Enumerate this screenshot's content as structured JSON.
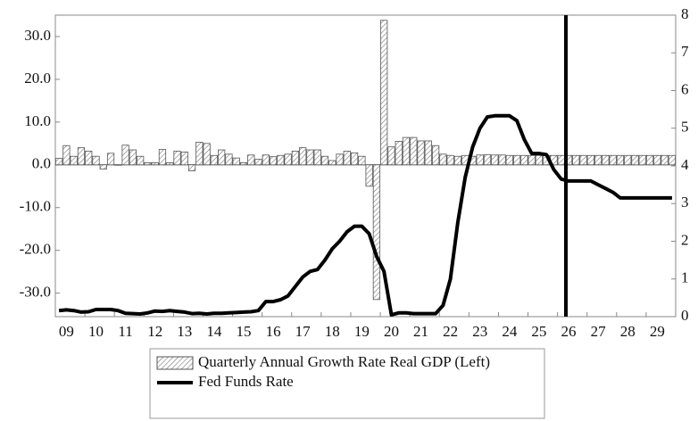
{
  "chart_data": {
    "type": "bar_line",
    "categories": [
      null,
      "09",
      null,
      null,
      null,
      "10",
      null,
      null,
      null,
      "11",
      null,
      null,
      null,
      "12",
      null,
      null,
      null,
      "13",
      null,
      null,
      null,
      "14",
      null,
      null,
      null,
      "15",
      null,
      null,
      null,
      "16",
      null,
      null,
      null,
      "17",
      null,
      null,
      null,
      "18",
      null,
      null,
      null,
      "19",
      null,
      null,
      null,
      "20",
      null,
      null,
      null,
      "21",
      null,
      null,
      null,
      "22",
      null,
      null,
      null,
      "23",
      null,
      null,
      null,
      "24",
      null,
      null,
      null,
      "25",
      null,
      null,
      null,
      "26",
      null,
      null,
      null,
      "27",
      null,
      null,
      null,
      "28",
      null,
      null,
      null,
      "29",
      null,
      null
    ],
    "series": [
      {
        "name": "Quarterly Annual Growth Rate Real GDP (Left)",
        "color": "#777777",
        "hatch": true,
        "axis": "y",
        "values": [
          1.5,
          4.5,
          2.0,
          4.0,
          3.2,
          2.0,
          -1.0,
          2.7,
          -0.1,
          4.6,
          3.5,
          2.0,
          0.5,
          0.5,
          3.6,
          0.5,
          3.2,
          3.0,
          -1.4,
          5.3,
          5.0,
          2.2,
          3.5,
          2.5,
          1.6,
          0.5,
          2.3,
          1.3,
          2.3,
          1.9,
          2.2,
          2.5,
          3.2,
          4.0,
          3.5,
          3.5,
          2.0,
          1.0,
          2.5,
          3.2,
          2.8,
          2.0,
          -5.0,
          -31.5,
          33.8,
          4.2,
          5.5,
          6.4,
          6.4,
          5.6,
          5.6,
          4.5,
          2.5,
          2.2,
          2.0,
          2.2,
          2.0,
          2.3,
          2.4,
          2.3,
          2.3,
          2.2,
          2.2,
          2.2,
          2.2,
          2.2,
          2.2,
          2.2,
          2.2,
          2.2,
          2.2,
          2.2,
          2.2,
          2.2,
          2.2,
          2.2,
          2.2,
          2.2,
          2.2,
          2.2,
          2.2,
          2.2,
          2.2,
          2.2
        ]
      },
      {
        "name": "Fed Funds Rate",
        "color": "#000000",
        "axis": "y2",
        "values": [
          0.16,
          0.18,
          0.16,
          0.12,
          0.13,
          0.19,
          0.19,
          0.19,
          0.16,
          0.09,
          0.08,
          0.07,
          0.1,
          0.15,
          0.14,
          0.16,
          0.14,
          0.12,
          0.08,
          0.09,
          0.07,
          0.09,
          0.09,
          0.1,
          0.11,
          0.12,
          0.13,
          0.16,
          0.4,
          0.4,
          0.45,
          0.55,
          0.8,
          1.05,
          1.2,
          1.25,
          1.5,
          1.8,
          2.0,
          2.25,
          2.4,
          2.4,
          2.2,
          1.6,
          1.2,
          0.05,
          0.1,
          0.1,
          0.08,
          0.08,
          0.08,
          0.08,
          0.3,
          1.0,
          2.5,
          3.7,
          4.5,
          5.0,
          5.3,
          5.33,
          5.33,
          5.33,
          5.2,
          4.7,
          4.33,
          4.33,
          4.3,
          3.9,
          3.65,
          3.6,
          3.6,
          3.6,
          3.6,
          3.5,
          3.4,
          3.3,
          3.15,
          3.15,
          3.15,
          3.15,
          3.15,
          3.15,
          3.15,
          3.15
        ]
      }
    ],
    "ylim": [
      -35.5,
      35
    ],
    "yticks": [
      {
        "value": -30,
        "label": "-30.0"
      },
      {
        "value": -20,
        "label": "-20.0"
      },
      {
        "value": -10,
        "label": "-10.0"
      },
      {
        "value": 0,
        "label": "0.0"
      },
      {
        "value": 10,
        "label": "10.0"
      },
      {
        "value": 20,
        "label": "20.0"
      },
      {
        "value": 30,
        "label": "30.0"
      }
    ],
    "y2lim": [
      0,
      8
    ],
    "y2ticks": [
      0,
      1,
      2,
      3,
      4,
      5,
      6,
      7,
      8
    ],
    "legend": "bottom"
  }
}
